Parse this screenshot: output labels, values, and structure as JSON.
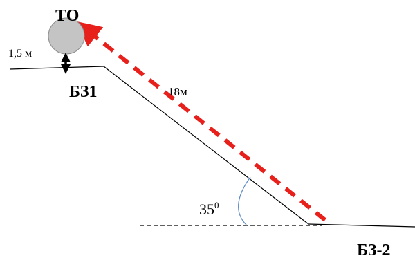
{
  "labels": {
    "target": "ТО",
    "height": "1,5 м",
    "point_top": "БЗ1",
    "distance": "18м",
    "angle_value": "35",
    "angle_unit": "0",
    "point_bottom": "БЗ-2"
  },
  "colors": {
    "ground": "#000000",
    "dashed_arrow": "#e8201c",
    "angle_arc": "#5a88c8",
    "target_fill": "#c4c4c4",
    "target_stroke": "#8a8a8a"
  },
  "icons": {
    "target": "gray-circle",
    "height_marker": "double-arrow-vertical",
    "sight_line": "dashed-arrow"
  }
}
